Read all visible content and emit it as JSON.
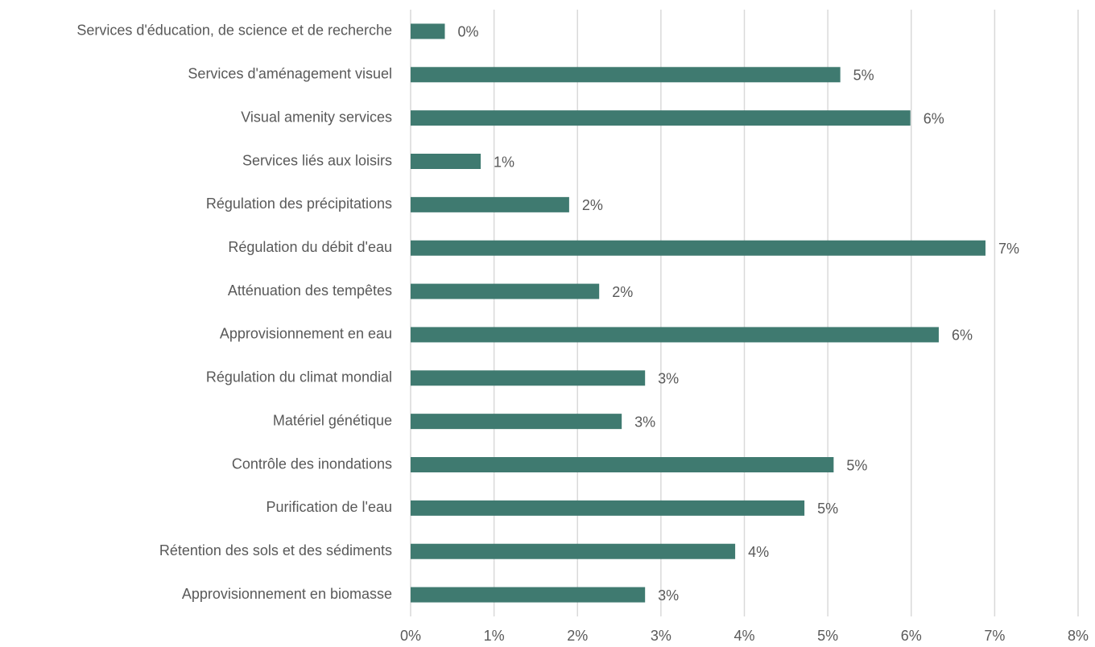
{
  "chart_data": {
    "type": "bar",
    "orientation": "horizontal",
    "categories": [
      "Services d'éducation, de science et de recherche",
      "Services d'aménagement visuel",
      "Visual amenity services",
      "Services liés aux loisirs",
      "Régulation des précipitations",
      "Régulation du débit d'eau",
      "Atténuation des tempêtes",
      "Approvisionnement en eau",
      "Régulation du climat mondial",
      "Matériel génétique",
      "Contrôle des inondations",
      "Purification de l'eau",
      "Rétention des sols et des sédiments",
      "Approvisionnement en biomasse"
    ],
    "values": [
      0.41,
      5.15,
      5.99,
      0.84,
      1.9,
      6.89,
      2.26,
      6.33,
      2.81,
      2.53,
      5.07,
      4.72,
      3.89,
      2.81
    ],
    "value_labels": [
      "0%",
      "5%",
      "6%",
      "1%",
      "2%",
      "7%",
      "2%",
      "6%",
      "3%",
      "3%",
      "5%",
      "5%",
      "4%",
      "3%"
    ],
    "color": "#3f7a70",
    "xlim": [
      0,
      8
    ],
    "xticks": [
      {
        "value": 0,
        "label": "0%"
      },
      {
        "value": 1,
        "label": "1%"
      },
      {
        "value": 2,
        "label": "2%"
      },
      {
        "value": 3,
        "label": "3%"
      },
      {
        "value": 4,
        "label": "4%"
      },
      {
        "value": 5,
        "label": "5%"
      },
      {
        "value": 6,
        "label": "6%"
      },
      {
        "value": 7,
        "label": "7%"
      },
      {
        "value": 8,
        "label": "8%"
      }
    ],
    "grid": true
  }
}
